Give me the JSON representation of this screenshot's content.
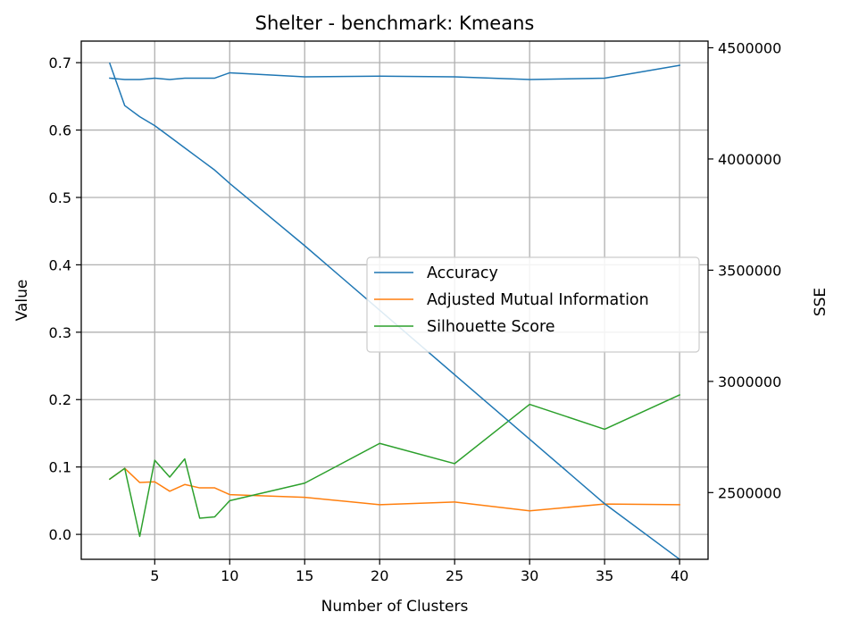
{
  "chart_data": {
    "type": "line",
    "title": "Shelter - benchmark: Kmeans",
    "xlabel": "Number of Clusters",
    "ylabel": "Value",
    "y2label": "SSE",
    "xlim": [
      0.1,
      41.9
    ],
    "ylim": [
      -0.037,
      0.732
    ],
    "y2lim": [
      2200000,
      4530000
    ],
    "grid": true,
    "legend_position": "center-right",
    "xticks": [
      5,
      10,
      15,
      20,
      25,
      30,
      35,
      40
    ],
    "yticks": [
      0.0,
      0.1,
      0.2,
      0.3,
      0.4,
      0.5,
      0.6,
      0.7
    ],
    "y2ticks": [
      2500000,
      3000000,
      3500000,
      4000000,
      4500000
    ],
    "series": [
      {
        "name": "Accuracy",
        "axis": "left",
        "color": "#1f77b4",
        "x": [
          2,
          3,
          4,
          5,
          6,
          7,
          8,
          9,
          10,
          15,
          20,
          25,
          30,
          35,
          40
        ],
        "values": [
          0.677,
          0.675,
          0.675,
          0.677,
          0.675,
          0.677,
          0.677,
          0.677,
          0.685,
          0.679,
          0.68,
          0.679,
          0.675,
          0.677,
          0.696
        ]
      },
      {
        "name": "Adjusted Mutual Information",
        "axis": "left",
        "color": "#ff7f0e",
        "x": [
          2,
          3,
          4,
          5,
          6,
          7,
          8,
          9,
          10,
          15,
          20,
          25,
          30,
          35,
          40
        ],
        "values": [
          0.082,
          0.098,
          0.077,
          0.078,
          0.064,
          0.074,
          0.069,
          0.069,
          0.059,
          0.055,
          0.044,
          0.048,
          0.035,
          0.045,
          0.044
        ]
      },
      {
        "name": "Silhouette Score",
        "axis": "left",
        "color": "#2ca02c",
        "x": [
          2,
          3,
          4,
          5,
          6,
          7,
          8,
          9,
          10,
          15,
          20,
          25,
          30,
          35,
          40
        ],
        "values": [
          0.082,
          0.098,
          -0.003,
          0.11,
          0.085,
          0.112,
          0.024,
          0.026,
          0.05,
          0.076,
          0.135,
          0.105,
          0.193,
          0.156,
          0.207
        ]
      },
      {
        "axis": "right",
        "color": "#1f77b4",
        "x": [
          2,
          3,
          4,
          5,
          6,
          7,
          8,
          9,
          10,
          15,
          20,
          25,
          30,
          35,
          40
        ],
        "values": [
          4430000,
          4240000,
          4190000,
          4150000,
          4100000,
          4050000,
          4000000,
          3950000,
          3890000,
          3610000,
          3320000,
          3030000,
          2740000,
          2450000,
          2200000
        ]
      }
    ]
  }
}
